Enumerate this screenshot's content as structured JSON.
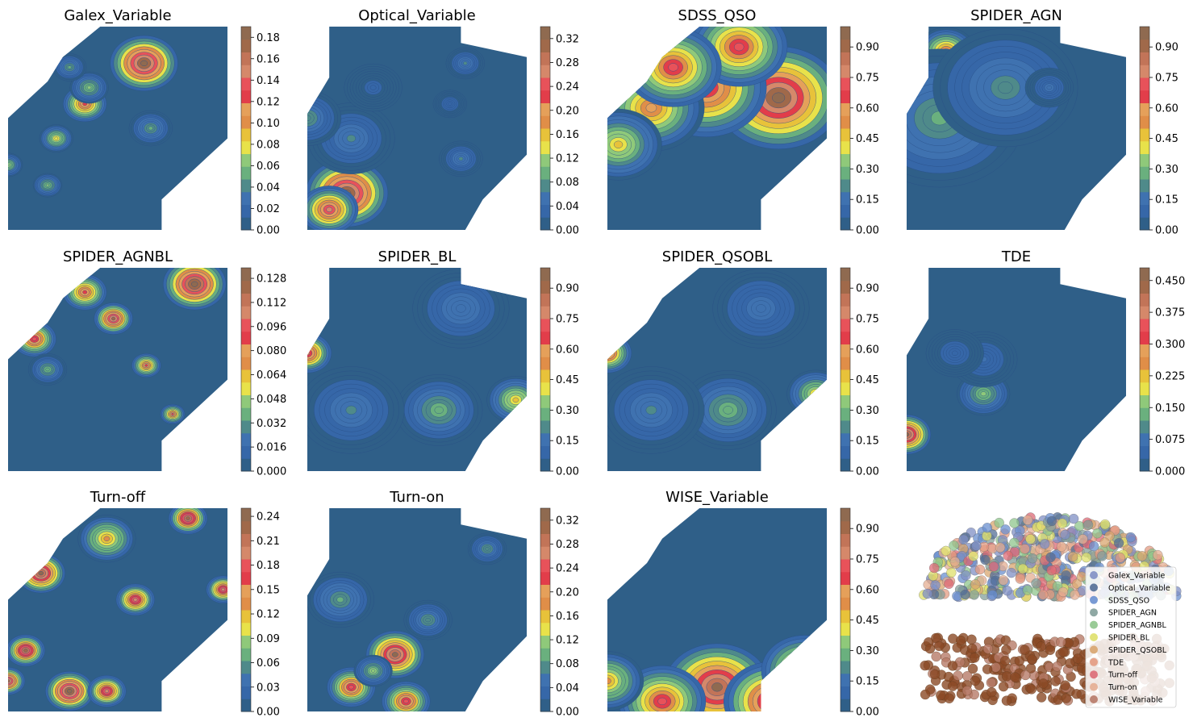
{
  "chart_data": [
    {
      "type": "heatmap",
      "title": "Galex_Variable",
      "colorbar_ticks": [
        "0.00",
        "0.02",
        "0.04",
        "0.06",
        "0.08",
        "0.10",
        "0.12",
        "0.14",
        "0.16",
        "0.18"
      ],
      "vmax": 0.19,
      "hotspots": [
        [
          0.62,
          0.18,
          0.19,
          0.14
        ],
        [
          0.35,
          0.38,
          0.13,
          0.09
        ],
        [
          0.22,
          0.55,
          0.08,
          0.07
        ],
        [
          0.0,
          0.68,
          0.07,
          0.06
        ],
        [
          0.18,
          0.78,
          0.06,
          0.06
        ],
        [
          0.65,
          0.5,
          0.05,
          0.09
        ],
        [
          0.37,
          0.3,
          0.06,
          0.08
        ],
        [
          0.28,
          0.2,
          0.05,
          0.07
        ]
      ]
    },
    {
      "type": "heatmap",
      "title": "Optical_Variable",
      "colorbar_ticks": [
        "0.00",
        "0.04",
        "0.08",
        "0.12",
        "0.16",
        "0.20",
        "0.24",
        "0.28",
        "0.32"
      ],
      "vmax": 0.34,
      "hotspots": [
        [
          0.18,
          0.82,
          0.34,
          0.17
        ],
        [
          0.1,
          0.9,
          0.26,
          0.12
        ],
        [
          0.2,
          0.55,
          0.07,
          0.18
        ],
        [
          0.72,
          0.18,
          0.07,
          0.08
        ],
        [
          0.0,
          0.45,
          0.08,
          0.14
        ],
        [
          0.7,
          0.65,
          0.07,
          0.09
        ],
        [
          0.65,
          0.38,
          0.04,
          0.07
        ],
        [
          0.3,
          0.3,
          0.03,
          0.12
        ]
      ]
    },
    {
      "type": "heatmap",
      "title": "SDSS_QSO",
      "colorbar_ticks": [
        "0.00",
        "0.15",
        "0.30",
        "0.45",
        "0.60",
        "0.75",
        "0.90"
      ],
      "vmax": 1.0,
      "hotspots": [
        [
          0.78,
          0.35,
          0.98,
          0.26
        ],
        [
          0.45,
          0.3,
          0.75,
          0.25
        ],
        [
          0.2,
          0.4,
          0.6,
          0.22
        ],
        [
          0.05,
          0.58,
          0.45,
          0.18
        ],
        [
          0.6,
          0.1,
          0.7,
          0.2
        ],
        [
          0.3,
          0.2,
          0.7,
          0.2
        ]
      ]
    },
    {
      "type": "heatmap",
      "title": "SPIDER_AGN",
      "colorbar_ticks": [
        "0.00",
        "0.15",
        "0.30",
        "0.45",
        "0.60",
        "0.75",
        "0.90"
      ],
      "vmax": 1.0,
      "hotspots": [
        [
          0.18,
          0.12,
          0.62,
          0.12
        ],
        [
          0.15,
          0.45,
          0.26,
          0.35
        ],
        [
          0.45,
          0.3,
          0.22,
          0.3
        ],
        [
          0.65,
          0.3,
          0.15,
          0.1
        ]
      ]
    },
    {
      "type": "heatmap",
      "title": "SPIDER_AGNBL",
      "colorbar_ticks": [
        "0.000",
        "0.016",
        "0.032",
        "0.048",
        "0.064",
        "0.080",
        "0.096",
        "0.112",
        "0.128"
      ],
      "vmax": 0.135,
      "hotspots": [
        [
          0.85,
          0.08,
          0.14,
          0.13
        ],
        [
          0.48,
          0.25,
          0.12,
          0.08
        ],
        [
          0.35,
          0.12,
          0.09,
          0.09
        ],
        [
          0.12,
          0.35,
          0.1,
          0.09
        ],
        [
          0.63,
          0.48,
          0.09,
          0.06
        ],
        [
          0.75,
          0.72,
          0.09,
          0.05
        ],
        [
          0.18,
          0.5,
          0.04,
          0.08
        ]
      ]
    },
    {
      "type": "heatmap",
      "title": "SPIDER_BL",
      "colorbar_ticks": [
        "0.00",
        "0.15",
        "0.30",
        "0.45",
        "0.60",
        "0.75",
        "0.90"
      ],
      "vmax": 1.0,
      "hotspots": [
        [
          0.0,
          0.42,
          0.75,
          0.1
        ],
        [
          0.95,
          0.65,
          0.45,
          0.12
        ],
        [
          0.6,
          0.7,
          0.28,
          0.18
        ],
        [
          0.2,
          0.7,
          0.2,
          0.22
        ],
        [
          0.7,
          0.2,
          0.18,
          0.2
        ]
      ]
    },
    {
      "type": "heatmap",
      "title": "SPIDER_QSOBL",
      "colorbar_ticks": [
        "0.00",
        "0.15",
        "0.30",
        "0.45",
        "0.60",
        "0.75",
        "0.90"
      ],
      "vmax": 1.0,
      "hotspots": [
        [
          0.0,
          0.42,
          0.72,
          0.1
        ],
        [
          0.95,
          0.62,
          0.42,
          0.12
        ],
        [
          0.55,
          0.7,
          0.28,
          0.2
        ],
        [
          0.2,
          0.7,
          0.2,
          0.22
        ],
        [
          0.7,
          0.2,
          0.16,
          0.2
        ]
      ]
    },
    {
      "type": "heatmap",
      "title": "TDE",
      "colorbar_ticks": [
        "0.000",
        "0.075",
        "0.150",
        "0.225",
        "0.300",
        "0.375",
        "0.450"
      ],
      "vmax": 0.48,
      "hotspots": [
        [
          0.0,
          0.82,
          0.46,
          0.1
        ],
        [
          0.35,
          0.62,
          0.16,
          0.11
        ],
        [
          0.35,
          0.45,
          0.06,
          0.14
        ],
        [
          0.22,
          0.42,
          0.05,
          0.12
        ]
      ]
    },
    {
      "type": "heatmap",
      "title": "Turn-off",
      "colorbar_ticks": [
        "0.00",
        "0.03",
        "0.06",
        "0.09",
        "0.12",
        "0.15",
        "0.18",
        "0.21",
        "0.24"
      ],
      "vmax": 0.25,
      "hotspots": [
        [
          0.15,
          0.32,
          0.24,
          0.1
        ],
        [
          0.08,
          0.7,
          0.23,
          0.08
        ],
        [
          0.28,
          0.9,
          0.25,
          0.1
        ],
        [
          0.58,
          0.45,
          0.2,
          0.08
        ],
        [
          0.98,
          0.4,
          0.2,
          0.07
        ],
        [
          0.45,
          0.15,
          0.13,
          0.12
        ],
        [
          0.82,
          0.05,
          0.23,
          0.08
        ],
        [
          0.45,
          0.9,
          0.2,
          0.08
        ],
        [
          0.0,
          0.85,
          0.22,
          0.07
        ]
      ]
    },
    {
      "type": "heatmap",
      "title": "Turn-on",
      "colorbar_ticks": [
        "0.00",
        "0.04",
        "0.08",
        "0.12",
        "0.16",
        "0.20",
        "0.24",
        "0.28",
        "0.32"
      ],
      "vmax": 0.34,
      "hotspots": [
        [
          0.4,
          0.72,
          0.33,
          0.12
        ],
        [
          0.2,
          0.88,
          0.25,
          0.1
        ],
        [
          0.45,
          0.95,
          0.25,
          0.1
        ],
        [
          0.15,
          0.45,
          0.09,
          0.14
        ],
        [
          0.55,
          0.55,
          0.08,
          0.1
        ],
        [
          0.82,
          0.2,
          0.08,
          0.08
        ],
        [
          0.3,
          0.8,
          0.12,
          0.08
        ]
      ]
    },
    {
      "type": "heatmap",
      "title": "WISE_Variable",
      "colorbar_ticks": [
        "0.00",
        "0.15",
        "0.30",
        "0.45",
        "0.60",
        "0.75",
        "0.90"
      ],
      "vmax": 1.0,
      "hotspots": [
        [
          0.5,
          0.88,
          0.95,
          0.22
        ],
        [
          0.75,
          0.95,
          0.85,
          0.2
        ],
        [
          0.25,
          0.95,
          0.7,
          0.18
        ],
        [
          0.0,
          0.85,
          0.5,
          0.15
        ],
        [
          0.9,
          0.8,
          0.7,
          0.18
        ]
      ]
    },
    {
      "type": "scatter",
      "title": "",
      "legend": [
        "Galex_Variable",
        "Optical_Variable",
        "SDSS_QSO",
        "SPIDER_AGN",
        "SPIDER_AGNBL",
        "SPIDER_BL",
        "SPIDER_QSOBL",
        "TDE",
        "Turn-off",
        "Turn-on",
        "WISE_Variable"
      ],
      "legend_colors": [
        "#7f8fc4",
        "#536e95",
        "#6a8fcf",
        "#839f9a",
        "#8fc58c",
        "#dfe06b",
        "#d8a56f",
        "#e39b81",
        "#dc6a76",
        "#e4ad92",
        "#b77a68"
      ]
    }
  ],
  "colors": {
    "low": "#2f5f88",
    "high": "#a0694a"
  }
}
